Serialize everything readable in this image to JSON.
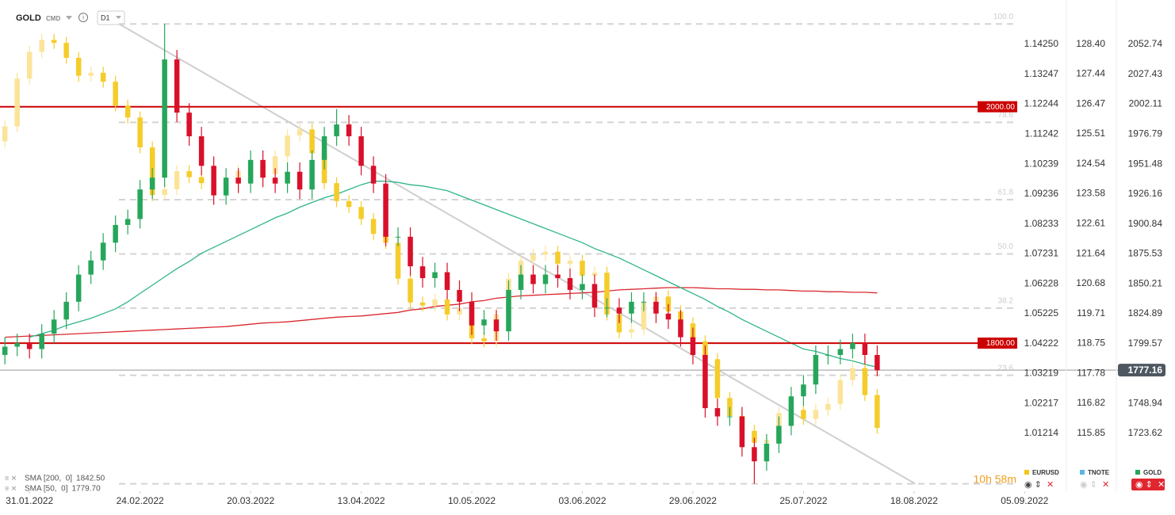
{
  "header": {
    "symbol": "GOLD",
    "market": "CMD",
    "interval": "D1"
  },
  "chart_data": {
    "type": "candlestick",
    "categories": [
      null,
      null,
      null,
      null,
      null,
      null,
      null,
      null,
      null,
      null,
      null,
      null,
      null,
      null,
      null,
      null,
      null,
      null,
      null,
      null,
      null,
      null,
      null,
      null,
      null,
      null,
      null,
      null,
      null,
      null,
      null,
      null,
      null,
      null,
      null,
      null,
      null,
      null,
      null,
      null,
      null,
      null,
      null,
      null,
      null,
      null,
      null,
      null,
      null,
      null,
      null,
      null,
      null,
      null,
      null,
      null,
      null,
      null,
      null,
      null,
      null,
      null,
      null,
      null,
      null,
      null,
      null,
      null,
      null,
      null,
      null,
      null
    ],
    "xlim": [
      -0.4,
      86.4
    ],
    "xticks": [
      {
        "value": 2,
        "label": "31.01.2022"
      },
      {
        "value": 11,
        "label": "24.02.2022"
      },
      {
        "value": 20,
        "label": "20.03.2022"
      },
      {
        "value": 29,
        "label": "13.04.2022"
      },
      {
        "value": 38,
        "label": "10.05.2022"
      },
      {
        "value": 47,
        "label": "03.06.2022"
      },
      {
        "value": 56,
        "label": "29.06.2022"
      },
      {
        "value": 65,
        "label": "25.07.2022"
      },
      {
        "value": 74,
        "label": "18.08.2022"
      },
      {
        "value": 83,
        "label": "05.09.2022"
      }
    ],
    "ylim": [
      1674.7,
      2090.3
    ],
    "yticks": [
      2052.74,
      2027.43,
      2002.11,
      1976.79,
      1951.48,
      1926.16,
      1900.84,
      1875.53,
      1850.21,
      1824.89,
      1799.57,
      1748.94,
      1723.62
    ],
    "y2lim": [
      0.99276,
      1.15737
    ],
    "y2ticks": [
      {
        "value": 1.1425,
        "label": "1.14250"
      },
      1.13247,
      1.12244,
      1.11242,
      1.10239,
      1.09236,
      1.08233,
      1.07231,
      1.06228,
      1.05225,
      1.04222,
      1.03219,
      1.02217,
      1.01214
    ],
    "y3lim": [
      113.98,
      129.83
    ],
    "y3ticks": [
      {
        "value": 128.4,
        "label": "128.40"
      },
      127.44,
      126.47,
      125.51,
      124.54,
      123.58,
      122.61,
      121.64,
      120.68,
      119.71,
      118.75,
      117.78,
      116.82,
      115.85
    ],
    "series": [
      {
        "name": "EURUSD",
        "type": "candlestick",
        "axis": "y2",
        "color": "#f5c518",
        "up_color": "#fbe49a",
        "down_color": "#f5cc2a",
        "open": [
          1.11,
          1.115,
          1.131,
          1.14,
          1.144,
          1.143,
          1.138,
          1.132,
          1.133,
          1.13,
          1.122,
          1.118,
          1.108,
          1.092,
          1.094,
          1.1,
          1.098,
          1.096,
          1.094,
          1.096,
          1.1,
          1.102,
          1.099,
          1.105,
          1.112,
          1.114,
          1.106,
          1.096,
          1.09,
          1.088,
          1.084,
          1.079,
          1.076,
          1.064,
          1.056,
          1.055,
          1.057,
          1.052,
          1.054,
          1.044,
          1.043,
          1.052,
          1.064,
          1.07,
          1.072,
          1.073,
          1.069,
          1.07,
          1.065,
          1.066,
          1.052,
          1.046,
          1.047,
          1.056,
          1.058,
          1.053,
          1.049,
          1.043,
          1.037,
          1.024,
          1.018,
          1.013,
          1.009,
          1.01,
          1.019,
          1.02,
          1.017,
          1.02,
          1.022,
          1.03,
          1.034,
          1.025
        ],
        "high": [
          1.117,
          1.133,
          1.142,
          1.146,
          1.146,
          1.145,
          1.14,
          1.135,
          1.135,
          1.132,
          1.124,
          1.12,
          1.11,
          1.096,
          1.102,
          1.102,
          1.1,
          1.098,
          1.098,
          1.102,
          1.104,
          1.104,
          1.107,
          1.114,
          1.116,
          1.116,
          1.108,
          1.098,
          1.092,
          1.09,
          1.086,
          1.081,
          1.078,
          1.066,
          1.058,
          1.059,
          1.059,
          1.056,
          1.056,
          1.046,
          1.054,
          1.066,
          1.072,
          1.074,
          1.075,
          1.075,
          1.072,
          1.072,
          1.068,
          1.068,
          1.054,
          1.049,
          1.058,
          1.06,
          1.06,
          1.055,
          1.051,
          1.045,
          1.039,
          1.026,
          1.02,
          1.015,
          1.012,
          1.021,
          1.022,
          1.022,
          1.022,
          1.024,
          1.032,
          1.036,
          1.036,
          1.027
        ],
        "low": [
          1.108,
          1.113,
          1.129,
          1.138,
          1.141,
          1.136,
          1.13,
          1.13,
          1.128,
          1.12,
          1.116,
          1.106,
          1.09,
          1.09,
          1.092,
          1.096,
          1.094,
          1.092,
          1.092,
          1.094,
          1.098,
          1.097,
          1.097,
          1.103,
          1.11,
          1.104,
          1.094,
          1.088,
          1.086,
          1.082,
          1.077,
          1.074,
          1.062,
          1.054,
          1.053,
          1.053,
          1.05,
          1.05,
          1.042,
          1.041,
          1.041,
          1.05,
          1.062,
          1.068,
          1.07,
          1.067,
          1.067,
          1.063,
          1.063,
          1.05,
          1.044,
          1.044,
          1.045,
          1.054,
          1.051,
          1.047,
          1.041,
          1.035,
          1.022,
          1.016,
          1.011,
          1.007,
          1.007,
          1.008,
          1.017,
          1.015,
          1.015,
          1.018,
          1.02,
          1.028,
          1.023,
          1.012
        ],
        "close": [
          1.115,
          1.131,
          1.14,
          1.144,
          1.143,
          1.138,
          1.132,
          1.133,
          1.13,
          1.122,
          1.118,
          1.108,
          1.092,
          1.094,
          1.1,
          1.098,
          1.096,
          1.094,
          1.096,
          1.1,
          1.102,
          1.099,
          1.105,
          1.112,
          1.114,
          1.106,
          1.096,
          1.09,
          1.088,
          1.084,
          1.079,
          1.076,
          1.064,
          1.056,
          1.055,
          1.057,
          1.052,
          1.054,
          1.044,
          1.043,
          1.052,
          1.064,
          1.07,
          1.072,
          1.073,
          1.069,
          1.07,
          1.065,
          1.066,
          1.052,
          1.046,
          1.047,
          1.056,
          1.058,
          1.053,
          1.049,
          1.043,
          1.037,
          1.024,
          1.018,
          1.013,
          1.009,
          1.01,
          1.019,
          1.02,
          1.017,
          1.02,
          1.022,
          1.03,
          1.034,
          1.025,
          1.014
        ]
      },
      {
        "name": "TNOTE",
        "type": "candlestick",
        "axis": "y3",
        "color": "#5bb5e8",
        "visible": false
      },
      {
        "name": "GOLD",
        "type": "candlestick",
        "axis": "y",
        "color": "#26a65b",
        "up_color": "#26a65b",
        "down_color": "#d9102a",
        "open": [
          1790,
          1797,
          1800,
          1795,
          1808,
          1820,
          1835,
          1858,
          1870,
          1885,
          1900,
          1905,
          1930,
          1940,
          2040,
          1995,
          1975,
          1950,
          1925,
          1940,
          1935,
          1955,
          1940,
          1935,
          1945,
          1930,
          1955,
          1975,
          1985,
          1975,
          1950,
          1935,
          1890,
          1890,
          1865,
          1855,
          1860,
          1845,
          1835,
          1815,
          1820,
          1810,
          1845,
          1858,
          1850,
          1858,
          1855,
          1845,
          1850,
          1830,
          1830,
          1825,
          1835,
          1835,
          1825,
          1820,
          1805,
          1790,
          1745,
          1738,
          1738,
          1712,
          1700,
          1715,
          1730,
          1755,
          1765,
          1790,
          1790,
          1795,
          1800,
          1790
        ],
        "high": [
          1805,
          1808,
          1808,
          1816,
          1828,
          1843,
          1866,
          1878,
          1893,
          1908,
          1913,
          1938,
          1948,
          2070,
          2048,
          2003,
          1983,
          1958,
          1948,
          1948,
          1963,
          1963,
          1948,
          1953,
          1953,
          1963,
          1983,
          1998,
          1993,
          1983,
          1958,
          1943,
          1898,
          1898,
          1873,
          1868,
          1868,
          1853,
          1843,
          1828,
          1828,
          1853,
          1866,
          1866,
          1866,
          1866,
          1863,
          1858,
          1858,
          1838,
          1838,
          1843,
          1843,
          1843,
          1833,
          1828,
          1813,
          1798,
          1753,
          1746,
          1746,
          1720,
          1723,
          1738,
          1763,
          1773,
          1798,
          1798,
          1803,
          1808,
          1808,
          1798
        ],
        "low": [
          1782,
          1789,
          1787,
          1787,
          1800,
          1812,
          1827,
          1850,
          1862,
          1877,
          1892,
          1897,
          1922,
          1932,
          1987,
          1967,
          1942,
          1917,
          1917,
          1927,
          1927,
          1932,
          1927,
          1927,
          1922,
          1922,
          1947,
          1967,
          1967,
          1942,
          1927,
          1882,
          1882,
          1857,
          1847,
          1847,
          1837,
          1827,
          1807,
          1807,
          1802,
          1802,
          1837,
          1842,
          1842,
          1847,
          1837,
          1837,
          1822,
          1822,
          1817,
          1817,
          1827,
          1817,
          1812,
          1797,
          1782,
          1737,
          1730,
          1730,
          1704,
          1681,
          1692,
          1707,
          1722,
          1747,
          1757,
          1782,
          1782,
          1787,
          1782,
          1772
        ],
        "close": [
          1797,
          1800,
          1795,
          1808,
          1820,
          1835,
          1858,
          1870,
          1885,
          1900,
          1905,
          1930,
          1940,
          2040,
          1995,
          1975,
          1950,
          1925,
          1940,
          1935,
          1955,
          1940,
          1935,
          1945,
          1930,
          1955,
          1975,
          1985,
          1975,
          1950,
          1935,
          1890,
          1890,
          1865,
          1855,
          1860,
          1845,
          1835,
          1815,
          1820,
          1810,
          1845,
          1858,
          1850,
          1858,
          1855,
          1845,
          1850,
          1830,
          1830,
          1825,
          1835,
          1835,
          1825,
          1820,
          1805,
          1790,
          1745,
          1738,
          1738,
          1712,
          1700,
          1715,
          1730,
          1755,
          1765,
          1790,
          1790,
          1795,
          1800,
          1790,
          1777
        ]
      },
      {
        "name": "SMA [200,  0]",
        "type": "line",
        "axis": "y",
        "color": "#d9282f",
        "value_label": "1842.50",
        "values": [
          1805,
          1805.5,
          1806,
          1806.5,
          1807,
          1807.5,
          1808,
          1808.5,
          1809,
          1809.5,
          1810,
          1810.5,
          1811,
          1811.5,
          1812,
          1812.5,
          1813,
          1813.5,
          1814,
          1815,
          1816,
          1817,
          1817.5,
          1818,
          1819,
          1820,
          1821,
          1822,
          1822.5,
          1823,
          1824,
          1825,
          1826,
          1828,
          1829,
          1831,
          1832,
          1833,
          1835,
          1836,
          1838,
          1839,
          1840,
          1840.5,
          1841,
          1841.5,
          1842,
          1842.5,
          1843,
          1844,
          1845,
          1845.5,
          1846,
          1846.5,
          1847,
          1847,
          1847,
          1846.5,
          1846,
          1846,
          1845.5,
          1845.5,
          1845,
          1845,
          1844.5,
          1844,
          1844,
          1843.5,
          1843.5,
          1843,
          1843,
          1842.5
        ]
      },
      {
        "name": "SMA [50,  0]",
        "type": "line",
        "axis": "y",
        "color": "#2fb58a",
        "value_label": "1779.70",
        "values": [
          null,
          null,
          1805,
          1808,
          1811,
          1815,
          1818,
          1821,
          1825,
          1829,
          1835,
          1842,
          1849,
          1856,
          1863,
          1869,
          1876,
          1881,
          1886,
          1891,
          1896,
          1901,
          1906,
          1910,
          1915,
          1919,
          1923,
          1926,
          1930,
          1934,
          1937,
          1937,
          1936,
          1934,
          1933,
          1931,
          1929,
          1925,
          1921,
          1917,
          1913,
          1909,
          1905,
          1901,
          1897,
          1893,
          1889,
          1885,
          1880,
          1876,
          1872,
          1867,
          1862,
          1857,
          1852,
          1847,
          1842,
          1837,
          1831,
          1826,
          1820,
          1815,
          1810,
          1805,
          1800,
          1795,
          1793,
          1790,
          1787,
          1785,
          1782,
          1779.7
        ]
      }
    ],
    "hlines": [
      {
        "value": 2000,
        "label": "2000.00",
        "color": "#cc0000"
      },
      {
        "value": 1800,
        "label": "1800.00",
        "color": "#cc0000"
      }
    ],
    "last_price": 1777.16,
    "fib_levels": [
      {
        "value": 2070,
        "label": "100.0"
      },
      {
        "value": 1986.8,
        "label": "78.6"
      },
      {
        "value": 1921.4,
        "label": "61.8"
      },
      {
        "value": 1875.5,
        "label": "50.0"
      },
      {
        "value": 1829.6,
        "label": "38.2"
      },
      {
        "value": 1772.8,
        "label": "23.6"
      },
      {
        "value": 1681,
        "label": null
      }
    ],
    "trendline": {
      "x": [
        9.3,
        74.1
      ],
      "y": [
        2070,
        1681
      ]
    },
    "countdown": "10h 58m"
  }
}
